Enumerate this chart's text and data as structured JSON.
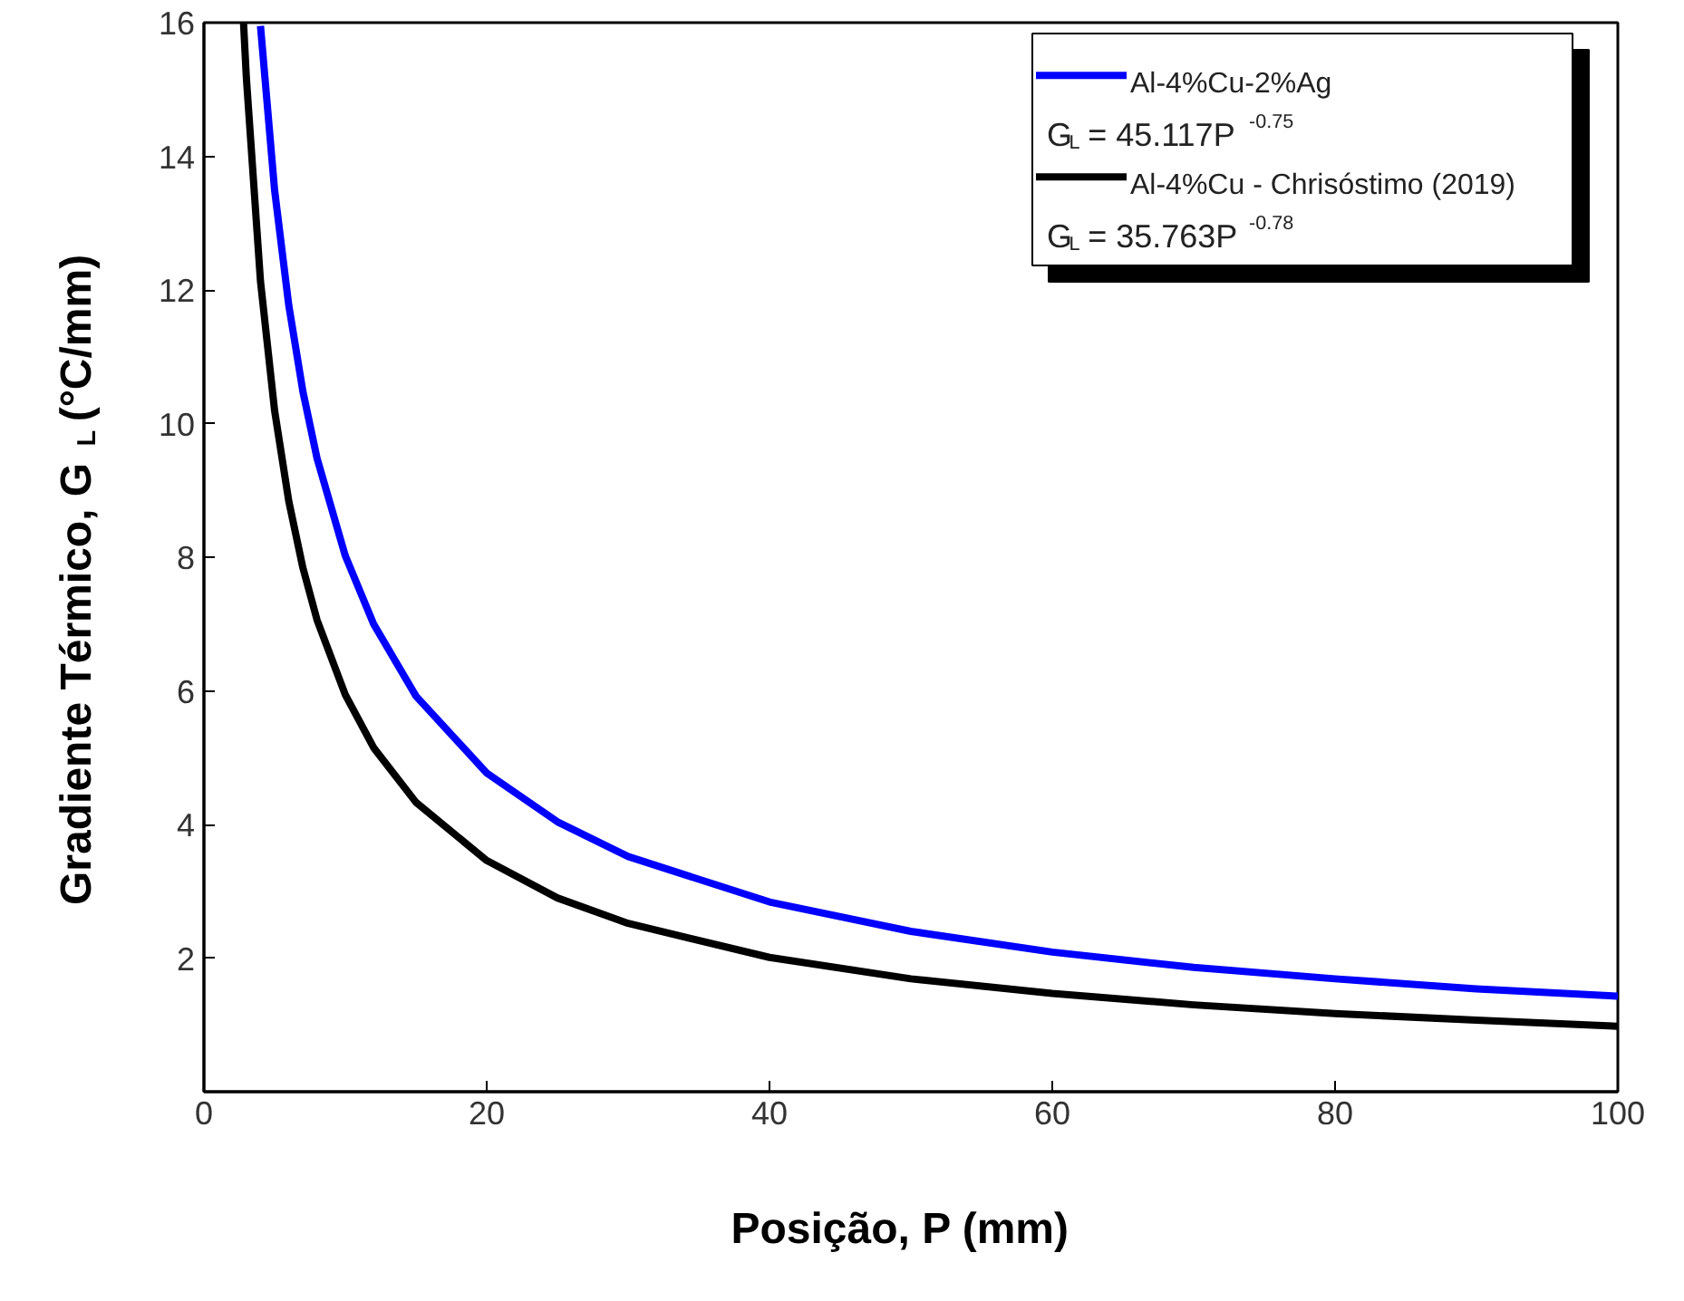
{
  "chart_data": {
    "type": "line",
    "xlabel": "Posição, P (mm)",
    "ylabel": "Gradiente Térmico, G$_{L}$ (°C/mm)",
    "xlim": [
      0,
      100
    ],
    "ylim": [
      0,
      16
    ],
    "xticks": [
      0,
      20,
      40,
      60,
      80,
      100
    ],
    "yticks": [
      2,
      4,
      6,
      8,
      10,
      12,
      14,
      16
    ],
    "grid": false,
    "legend": "top right",
    "marker": "none",
    "line_style": "solid",
    "series": [
      {
        "name": "Al-4%Cu-2%Ag",
        "color": "#0000ff",
        "x": [
          4,
          5,
          6,
          7,
          8,
          10,
          12,
          15,
          20,
          25,
          30,
          40,
          50,
          60,
          70,
          80,
          90,
          100
        ],
        "values": [
          15.95,
          13.49,
          11.77,
          10.48,
          9.48,
          8.02,
          7.0,
          5.92,
          4.77,
          4.04,
          3.52,
          2.84,
          2.4,
          2.09,
          1.86,
          1.69,
          1.54,
          1.43
        ]
      },
      {
        "name": "Al-4%Cu - Chrisóstimo (2019)",
        "color": "#000000",
        "x": [
          2.8,
          3,
          4,
          5,
          6,
          7,
          8,
          10,
          12,
          15,
          20,
          25,
          30,
          40,
          50,
          60,
          70,
          80,
          90,
          100
        ],
        "values": [
          16.0,
          15.18,
          12.13,
          10.19,
          8.84,
          7.84,
          7.06,
          5.94,
          5.15,
          4.33,
          3.46,
          2.9,
          2.52,
          2.01,
          1.69,
          1.47,
          1.3,
          1.17,
          1.07,
          0.98
        ]
      }
    ],
    "annotations": [
      "G$_{L}$ = 45.117P$^{-0.75}$",
      "G$_{L}$ = 35.763P$^{-0.78}$"
    ]
  }
}
